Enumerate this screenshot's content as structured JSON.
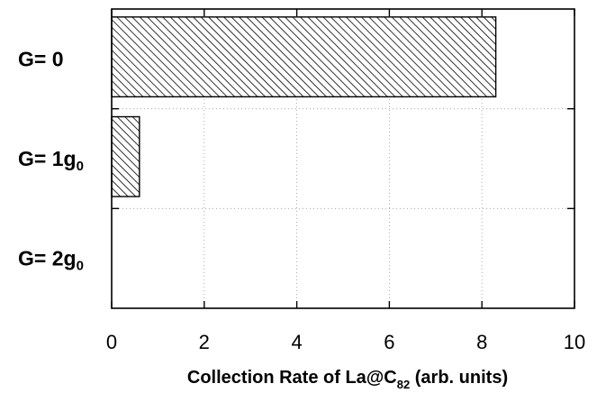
{
  "chart_data": {
    "type": "bar",
    "orientation": "horizontal",
    "categories": [
      {
        "label": "G= 0",
        "main": "G= 0",
        "sub": ""
      },
      {
        "label": "G= 1g0",
        "main": "G= 1g",
        "sub": "0"
      },
      {
        "label": "G= 2g0",
        "main": "G= 2g",
        "sub": "0"
      }
    ],
    "values": [
      8.3,
      0.6,
      0
    ],
    "xlim": [
      0,
      10
    ],
    "xticks": [
      "0",
      "2",
      "4",
      "6",
      "8",
      "10"
    ],
    "xlabel": {
      "full": "Collection Rate of La@C82 (arb. units)",
      "pre": "Collection Rate of La@C",
      "sub": "82",
      "post": " (arb. units)"
    },
    "ylabel": "",
    "title": "",
    "grid": true,
    "bar_fill": "diagonal-hatch",
    "colors": {
      "bar": "#000000",
      "background": "#ffffff",
      "grid": "#9a9a9a"
    }
  }
}
